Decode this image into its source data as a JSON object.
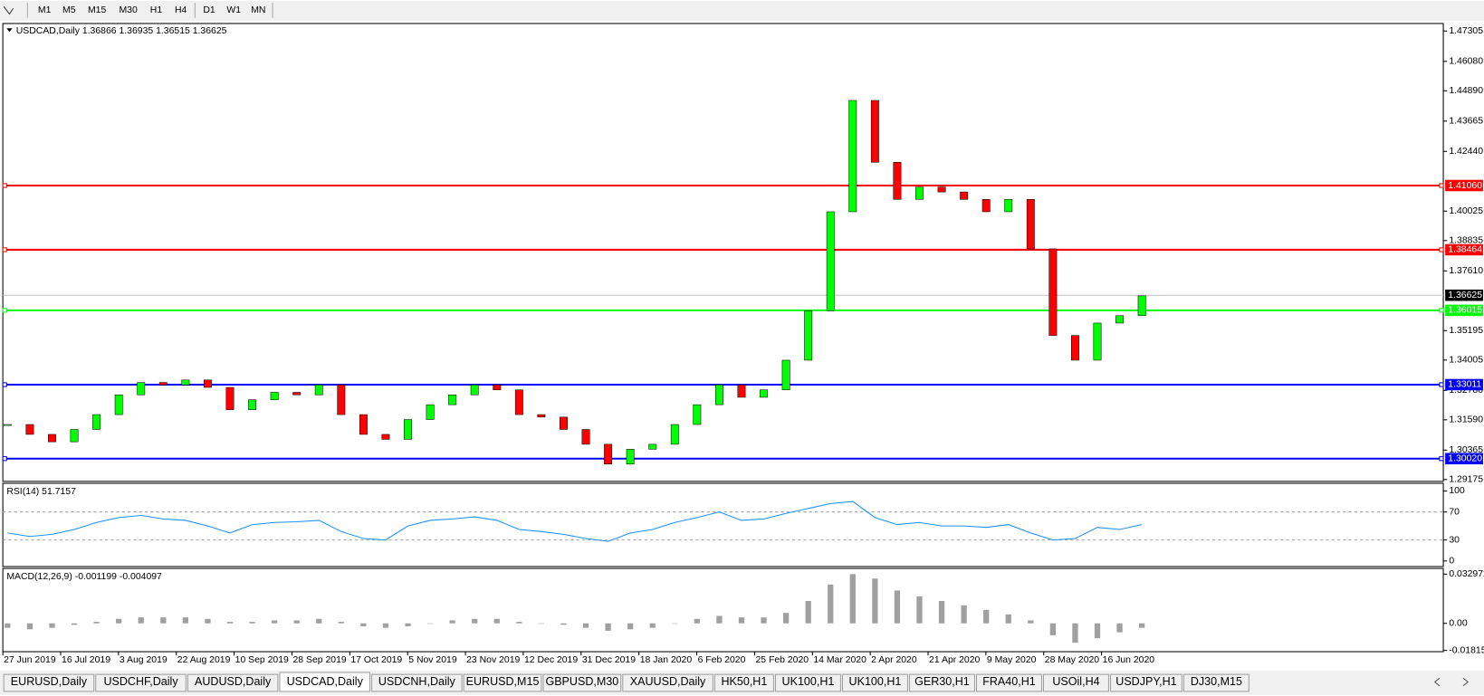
{
  "toolbar": {
    "timeframes": [
      "M1",
      "M5",
      "M15",
      "M30",
      "H1",
      "H4",
      "D1",
      "W1",
      "MN"
    ]
  },
  "tabs": [
    "EURUSD,Daily",
    "USDCHF,Daily",
    "AUDUSD,Daily",
    "USDCAD,Daily",
    "USDCNH,Daily",
    "EURUSD,M15",
    "GBPUSD,M30",
    "XAUUSD,Daily",
    "HK50,H1",
    "UK100,H1",
    "UK100,H1",
    "GER30,H1",
    "FRA40,H1",
    "USOil,H4",
    "USDJPY,H1",
    "DJ30,M15"
  ],
  "active_tab": "USDCAD,Daily",
  "chart_data": [
    {
      "type": "candlestick",
      "title": "USDCAD,Daily  1.36866 1.36935 1.36515 1.36625",
      "up_color": "#00ff00",
      "down_color": "#ff0000",
      "values": [
        1.314,
        1.31,
        1.307,
        1.312,
        1.318,
        1.326,
        1.331,
        1.33,
        1.332,
        1.329,
        1.32,
        1.324,
        1.327,
        1.326,
        1.33,
        1.318,
        1.31,
        1.308,
        1.316,
        1.322,
        1.326,
        1.33,
        1.328,
        1.318,
        1.317,
        1.312,
        1.306,
        1.298,
        1.304,
        1.306,
        1.314,
        1.322,
        1.33,
        1.325,
        1.328,
        1.34,
        1.36,
        1.4,
        1.445,
        1.42,
        1.405,
        1.41,
        1.408,
        1.405,
        1.4,
        1.405,
        1.385,
        1.35,
        1.34,
        1.355,
        1.358,
        1.366
      ],
      "ylim": [
        1.291,
        1.4761
      ],
      "yticks": [
        1.47305,
        {
          "value": 1.4608,
          "label": "1.46080"
        },
        {
          "value": 1.4489,
          "label": "1.44890"
        },
        1.43665,
        {
          "value": 1.4244,
          "label": "1.42440"
        },
        1.40025,
        1.38835,
        {
          "value": 1.3761,
          "label": "1.37610"
        },
        1.35195,
        1.34005,
        {
          "value": 1.3278,
          "label": "1.32780"
        },
        {
          "value": 1.3159,
          "label": "1.31590"
        },
        1.30365,
        1.29175
      ],
      "levels": [
        {
          "value": 1.4106,
          "label": "1.41060",
          "color": "#ff0000"
        },
        {
          "value": 1.38464,
          "label": "1.38464",
          "color": "#ff0000"
        },
        {
          "value": 1.36015,
          "label": "1.36015",
          "color": "#00ff00"
        },
        {
          "value": 1.33011,
          "label": "1.33011",
          "color": "#0000ff"
        },
        {
          "value": 1.3002,
          "label": "1.30020",
          "color": "#0000ff"
        }
      ],
      "current": {
        "value": 1.36625,
        "label": "1.36625",
        "color": "#000000"
      }
    },
    {
      "type": "line",
      "title": "RSI(14) 51.7157",
      "color": "#1e90ff",
      "values": [
        40,
        35,
        38,
        45,
        55,
        62,
        65,
        60,
        58,
        50,
        40,
        52,
        55,
        56,
        58,
        42,
        32,
        30,
        50,
        58,
        60,
        63,
        58,
        45,
        42,
        38,
        32,
        28,
        40,
        45,
        55,
        62,
        70,
        58,
        60,
        68,
        75,
        82,
        85,
        62,
        52,
        55,
        50,
        50,
        48,
        52,
        40,
        30,
        32,
        48,
        45,
        52
      ],
      "ylim": [
        -8,
        111
      ],
      "yticks": [
        100,
        70,
        30,
        0
      ],
      "levels": [
        70,
        30
      ]
    },
    {
      "type": "bar",
      "title": "MACD(12,26,9) -0.001199 -0.004097",
      "color": "#a0a0a0",
      "values": [
        -0.003,
        -0.004,
        -0.003,
        -0.001,
        0.001,
        0.003,
        0.004,
        0.004,
        0.004,
        0.003,
        0.001,
        0.001,
        0.002,
        0.002,
        0.003,
        0.001,
        -0.002,
        -0.003,
        -0.002,
        0.0,
        0.002,
        0.003,
        0.003,
        0.001,
        0.0,
        -0.001,
        -0.003,
        -0.005,
        -0.004,
        -0.003,
        0.0,
        0.003,
        0.005,
        0.004,
        0.004,
        0.007,
        0.015,
        0.026,
        0.033,
        0.03,
        0.022,
        0.018,
        0.015,
        0.012,
        0.009,
        0.006,
        0.002,
        -0.008,
        -0.013,
        -0.01,
        -0.006,
        -0.003
      ],
      "ylim": [
        -0.019,
        0.0368
      ],
      "yticks": [
        0.032972,
        {
          "value": 0,
          "label": "0.00"
        },
        -0.018154
      ],
      "x_labels": [
        "27 Jun 2019",
        "16 Jul 2019",
        "3 Aug 2019",
        "22 Aug 2019",
        "10 Sep 2019",
        "28 Sep 2019",
        "17 Oct 2019",
        "5 Nov 2019",
        "23 Nov 2019",
        "12 Dec 2019",
        "31 Dec 2019",
        "18 Jan 2020",
        "6 Feb 2020",
        "25 Feb 2020",
        "14 Mar 2020",
        "2 Apr 2020",
        "21 Apr 2020",
        "9 May 2020",
        "28 May 2020",
        "16 Jun 2020"
      ]
    }
  ]
}
